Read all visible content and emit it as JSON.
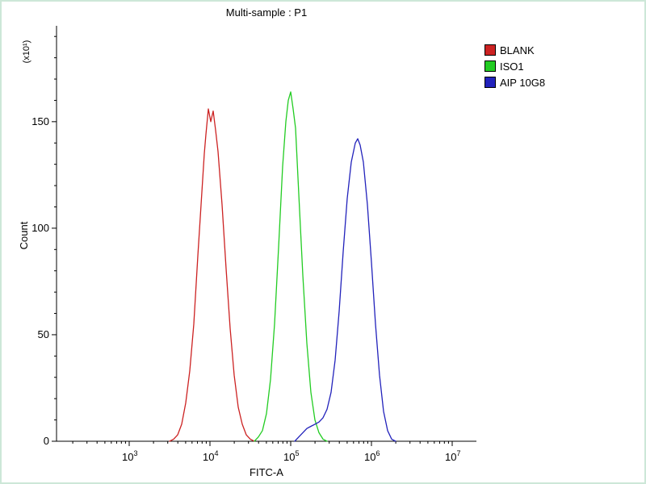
{
  "frame": {
    "border_color": "#cde7d8",
    "background": "#ffffff"
  },
  "chart_data": {
    "type": "line",
    "title": "Multi-sample : P1",
    "xlabel": "FITC-A",
    "ylabel": "Count",
    "y_multiplier": "(x10¹)",
    "x_scale": "log10",
    "x_log_range": [
      2.1,
      7.3
    ],
    "x_major_exponents": [
      3,
      4,
      5,
      6,
      7
    ],
    "ylim": [
      0,
      195
    ],
    "yticks": [
      0,
      50,
      100,
      150
    ],
    "y_minor_step": 10,
    "grid": false,
    "legend_position": "top-right",
    "series": [
      {
        "name": "BLANK",
        "color": "#cc2222",
        "peak_log_x": 4.0,
        "peak_count": 157,
        "points": [
          [
            3.5,
            0
          ],
          [
            3.55,
            1
          ],
          [
            3.6,
            3
          ],
          [
            3.65,
            8
          ],
          [
            3.7,
            18
          ],
          [
            3.75,
            33
          ],
          [
            3.8,
            55
          ],
          [
            3.85,
            87
          ],
          [
            3.9,
            117
          ],
          [
            3.93,
            135
          ],
          [
            3.95,
            144
          ],
          [
            3.98,
            156
          ],
          [
            4.01,
            150
          ],
          [
            4.04,
            155
          ],
          [
            4.07,
            146
          ],
          [
            4.1,
            136
          ],
          [
            4.15,
            111
          ],
          [
            4.2,
            81
          ],
          [
            4.25,
            53
          ],
          [
            4.3,
            31
          ],
          [
            4.35,
            16
          ],
          [
            4.4,
            8
          ],
          [
            4.45,
            3
          ],
          [
            4.5,
            1
          ],
          [
            4.55,
            0
          ]
        ]
      },
      {
        "name": "ISO1",
        "color": "#22cc22",
        "peak_log_x": 5.0,
        "peak_count": 164,
        "points": [
          [
            4.55,
            0
          ],
          [
            4.6,
            2
          ],
          [
            4.65,
            5
          ],
          [
            4.7,
            13
          ],
          [
            4.75,
            29
          ],
          [
            4.8,
            55
          ],
          [
            4.85,
            91
          ],
          [
            4.9,
            129
          ],
          [
            4.94,
            150
          ],
          [
            4.97,
            160
          ],
          [
            5.0,
            164
          ],
          [
            5.03,
            156
          ],
          [
            5.06,
            147
          ],
          [
            5.1,
            116
          ],
          [
            5.15,
            78
          ],
          [
            5.2,
            46
          ],
          [
            5.25,
            23
          ],
          [
            5.3,
            10
          ],
          [
            5.35,
            4
          ],
          [
            5.4,
            1
          ],
          [
            5.45,
            0
          ]
        ]
      },
      {
        "name": "AIP 10G8",
        "color": "#2222bb",
        "peak_log_x": 5.83,
        "peak_count": 142,
        "points": [
          [
            5.05,
            0
          ],
          [
            5.1,
            2
          ],
          [
            5.15,
            4
          ],
          [
            5.2,
            6
          ],
          [
            5.25,
            7
          ],
          [
            5.3,
            8
          ],
          [
            5.35,
            9
          ],
          [
            5.4,
            11
          ],
          [
            5.45,
            15
          ],
          [
            5.5,
            23
          ],
          [
            5.55,
            38
          ],
          [
            5.6,
            61
          ],
          [
            5.65,
            89
          ],
          [
            5.7,
            114
          ],
          [
            5.75,
            131
          ],
          [
            5.8,
            140
          ],
          [
            5.83,
            142
          ],
          [
            5.86,
            139
          ],
          [
            5.9,
            131
          ],
          [
            5.95,
            111
          ],
          [
            6.0,
            84
          ],
          [
            6.05,
            55
          ],
          [
            6.1,
            31
          ],
          [
            6.15,
            14
          ],
          [
            6.2,
            5
          ],
          [
            6.25,
            1
          ],
          [
            6.3,
            0
          ]
        ]
      }
    ]
  }
}
